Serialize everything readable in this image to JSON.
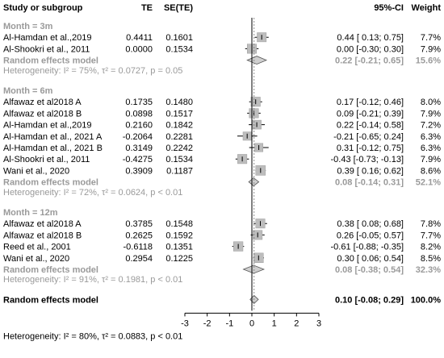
{
  "headers": {
    "study": "Study or subgroup",
    "te": "TE",
    "sete": "SE(TE)",
    "ci": "95%-CI",
    "weight": "Weight"
  },
  "colors": {
    "text": "#000000",
    "subgroup": "#9a9a9a",
    "box": "#bdbdbd",
    "diamond_fill": "#cfcfcf"
  },
  "chart_data": {
    "type": "forest",
    "xlim": [
      -3,
      3
    ],
    "xticks": [
      -3,
      -2,
      -1,
      0,
      1,
      2,
      3
    ],
    "reference_line": 0,
    "subgroups": [
      {
        "label": "Month = 3m",
        "studies": [
          {
            "name": "Al-Hamdan et al.,2019",
            "te": "0.4411",
            "se": "0.1601",
            "est": 0.44,
            "lo": 0.13,
            "hi": 0.75,
            "ci_text": "0.44  [ 0.13; 0.75]",
            "weight": "7.7%",
            "w": 7.7
          },
          {
            "name": "Al-Shookri et al., 2011",
            "te": "0.0000",
            "se": "0.1534",
            "est": 0.0,
            "lo": -0.3,
            "hi": 0.3,
            "ci_text": "0.00  [-0.30; 0.30]",
            "weight": "7.9%",
            "w": 7.9
          }
        ],
        "pooled": {
          "label": "Random effects model",
          "est": 0.22,
          "lo": -0.21,
          "hi": 0.65,
          "ci_text": "0.22  [-0.21; 0.65]",
          "weight": "15.6%"
        },
        "heterogeneity": "Heterogeneity: I² = 75%, τ² = 0.0727, p = 0.05"
      },
      {
        "label": "Month = 6m",
        "studies": [
          {
            "name": "Alfawaz et al2018 A",
            "te": "0.1735",
            "se": "0.1480",
            "est": 0.17,
            "lo": -0.12,
            "hi": 0.46,
            "ci_text": "0.17  [-0.12; 0.46]",
            "weight": "8.0%",
            "w": 8.0
          },
          {
            "name": "Alfawaz et al2018 B",
            "te": "0.0898",
            "se": "0.1517",
            "est": 0.09,
            "lo": -0.21,
            "hi": 0.39,
            "ci_text": "0.09  [-0.21; 0.39]",
            "weight": "7.9%",
            "w": 7.9
          },
          {
            "name": "Al-Hamdan et al.,2019",
            "te": "0.2160",
            "se": "0.1842",
            "est": 0.22,
            "lo": -0.14,
            "hi": 0.58,
            "ci_text": "0.22  [-0.14; 0.58]",
            "weight": "7.2%",
            "w": 7.2
          },
          {
            "name": "Al-Hamdan et al., 2021 A",
            "te": "-0.2064",
            "se": "0.2281",
            "est": -0.21,
            "lo": -0.65,
            "hi": 0.24,
            "ci_text": "-0.21  [-0.65; 0.24]",
            "weight": "6.3%",
            "w": 6.3
          },
          {
            "name": "Al-Hamdan et al., 2021 B",
            "te": "0.3149",
            "se": "0.2242",
            "est": 0.31,
            "lo": -0.12,
            "hi": 0.75,
            "ci_text": "0.31  [-0.12; 0.75]",
            "weight": "6.3%",
            "w": 6.3
          },
          {
            "name": "Al-Shookri et al., 2011",
            "te": "-0.4275",
            "se": "0.1534",
            "est": -0.43,
            "lo": -0.73,
            "hi": -0.13,
            "ci_text": "-0.43  [-0.73; -0.13]",
            "weight": "7.9%",
            "w": 7.9
          },
          {
            "name": "Wani et al., 2020",
            "te": "0.3909",
            "se": "0.1187",
            "est": 0.39,
            "lo": 0.16,
            "hi": 0.62,
            "ci_text": "0.39  [ 0.16; 0.62]",
            "weight": "8.6%",
            "w": 8.6
          }
        ],
        "pooled": {
          "label": "Random effects model",
          "est": 0.08,
          "lo": -0.14,
          "hi": 0.31,
          "ci_text": "0.08  [-0.14; 0.31]",
          "weight": "52.1%"
        },
        "heterogeneity": "Heterogeneity: I² = 72%, τ² = 0.0624, p < 0.01"
      },
      {
        "label": "Month = 12m",
        "studies": [
          {
            "name": "Alfawaz et al2018 A",
            "te": "0.3785",
            "se": "0.1548",
            "est": 0.38,
            "lo": 0.08,
            "hi": 0.68,
            "ci_text": "0.38  [ 0.08; 0.68]",
            "weight": "7.8%",
            "w": 7.8
          },
          {
            "name": "Alfawaz et al2018 B",
            "te": "0.2625",
            "se": "0.1592",
            "est": 0.26,
            "lo": -0.05,
            "hi": 0.57,
            "ci_text": "0.26  [-0.05; 0.57]",
            "weight": "7.7%",
            "w": 7.7
          },
          {
            "name": "Reed et al., 2001",
            "te": "-0.6118",
            "se": "0.1351",
            "est": -0.61,
            "lo": -0.88,
            "hi": -0.35,
            "ci_text": "-0.61  [-0.88; -0.35]",
            "weight": "8.2%",
            "w": 8.2
          },
          {
            "name": "Wani et al., 2020",
            "te": "0.2954",
            "se": "0.1225",
            "est": 0.3,
            "lo": 0.06,
            "hi": 0.54,
            "ci_text": "0.30  [ 0.06; 0.54]",
            "weight": "8.5%",
            "w": 8.5
          }
        ],
        "pooled": {
          "label": "Random effects model",
          "est": 0.08,
          "lo": -0.38,
          "hi": 0.54,
          "ci_text": "0.08  [-0.38; 0.54]",
          "weight": "32.3%"
        },
        "heterogeneity": "Heterogeneity: I² = 91%, τ² = 0.1981, p < 0.01"
      }
    ],
    "overall": {
      "label": "Random effects model",
      "est": 0.1,
      "lo": -0.08,
      "hi": 0.29,
      "ci_text": "0.10  [-0.08; 0.29]",
      "weight": "100.0%"
    },
    "overall_heterogeneity": "Heterogeneity: I² = 80%, τ² = 0.0883, p < 0.01"
  }
}
